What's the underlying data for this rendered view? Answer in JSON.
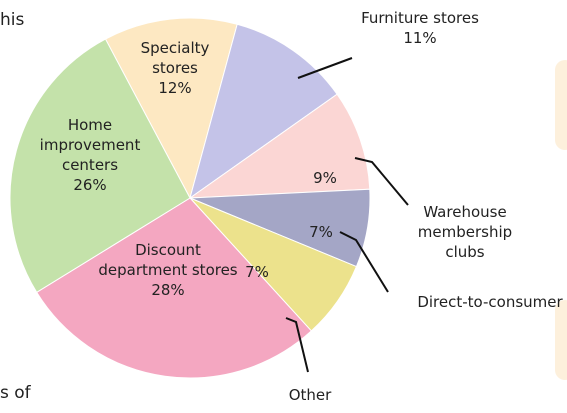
{
  "chart_data": {
    "type": "pie",
    "categories": [
      "Specialty stores",
      "Furniture stores",
      "Warehouse membership clubs",
      "Direct-to-consumer",
      "Other",
      "Discount department stores",
      "Home improvement centers"
    ],
    "values": [
      12,
      11,
      9,
      7,
      7,
      28,
      26
    ],
    "value_labels": [
      "12%",
      "11%",
      "9%",
      "7%",
      "7%",
      "28%",
      "26%"
    ],
    "colors": [
      "#fde8c2",
      "#c4c3e8",
      "#fbd6d4",
      "#a4a6c6",
      "#ece28c",
      "#f4a7c1",
      "#c4e2aa"
    ]
  },
  "text_fragments": [
    "his",
    "s of"
  ]
}
